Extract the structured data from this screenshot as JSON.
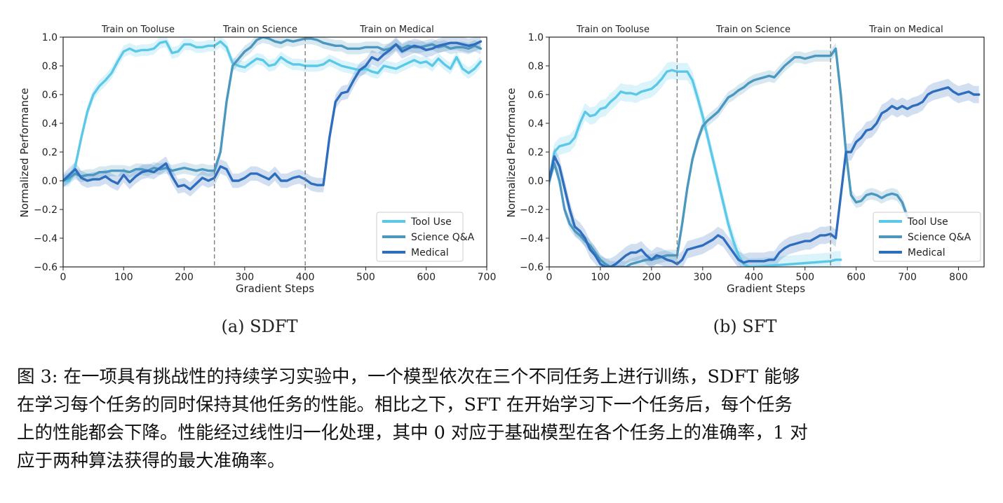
{
  "chart_data": [
    {
      "type": "line",
      "subcaption": "(a) SDFT",
      "xlabel": "Gradient Steps",
      "ylabel": "Normalized Performance",
      "xlim": [
        0,
        700
      ],
      "ylim": [
        -0.6,
        1.0
      ],
      "xticks": [
        0,
        100,
        200,
        300,
        400,
        500,
        600,
        700
      ],
      "yticks": [
        -0.6,
        -0.4,
        -0.2,
        0.0,
        0.2,
        0.4,
        0.6,
        0.8,
        1.0
      ],
      "ytick_labels": [
        "−0.6",
        "−0.4",
        "−0.2",
        "0.0",
        "0.2",
        "0.4",
        "0.6",
        "0.8",
        "1.0"
      ],
      "phase_boundaries": [
        250,
        400
      ],
      "phase_labels": [
        {
          "text": "Train on Tooluse",
          "x": 125
        },
        {
          "text": "Train on Science",
          "x": 325
        },
        {
          "text": "Train on Medical",
          "x": 550
        }
      ],
      "legend": [
        "Tool Use",
        "Science Q&A",
        "Medical"
      ],
      "legend_loc": "lower-right",
      "series": [
        {
          "name": "Tool Use",
          "color": "#5bc8e8",
          "band": 0.04,
          "x": [
            0,
            10,
            20,
            30,
            40,
            50,
            60,
            70,
            80,
            90,
            100,
            110,
            120,
            130,
            140,
            150,
            160,
            170,
            180,
            190,
            200,
            210,
            220,
            230,
            240,
            250,
            260,
            270,
            280,
            290,
            300,
            310,
            320,
            330,
            340,
            350,
            360,
            370,
            380,
            390,
            400,
            410,
            420,
            430,
            440,
            450,
            460,
            470,
            480,
            490,
            500,
            510,
            520,
            530,
            540,
            550,
            560,
            570,
            580,
            590,
            600,
            610,
            620,
            630,
            640,
            650,
            660,
            670,
            680,
            690
          ],
          "y": [
            0.0,
            0.0,
            0.1,
            0.3,
            0.48,
            0.6,
            0.66,
            0.7,
            0.75,
            0.83,
            0.9,
            0.92,
            0.9,
            0.91,
            0.91,
            0.92,
            0.96,
            0.97,
            0.89,
            0.9,
            0.95,
            0.95,
            0.93,
            0.93,
            0.94,
            0.94,
            0.97,
            0.93,
            0.82,
            0.8,
            0.79,
            0.82,
            0.85,
            0.84,
            0.8,
            0.81,
            0.86,
            0.83,
            0.81,
            0.81,
            0.8,
            0.8,
            0.8,
            0.81,
            0.84,
            0.82,
            0.8,
            0.79,
            0.78,
            0.77,
            0.78,
            0.76,
            0.75,
            0.8,
            0.79,
            0.78,
            0.8,
            0.82,
            0.84,
            0.82,
            0.83,
            0.8,
            0.85,
            0.81,
            0.78,
            0.86,
            0.78,
            0.75,
            0.78,
            0.83
          ]
        },
        {
          "name": "Science Q&A",
          "color": "#4b97c0",
          "band": 0.04,
          "x": [
            0,
            10,
            20,
            30,
            40,
            50,
            60,
            70,
            80,
            90,
            100,
            110,
            120,
            130,
            140,
            150,
            160,
            170,
            180,
            190,
            200,
            210,
            220,
            230,
            240,
            250,
            260,
            270,
            280,
            290,
            300,
            310,
            320,
            330,
            340,
            350,
            360,
            370,
            380,
            390,
            400,
            410,
            420,
            430,
            440,
            450,
            460,
            470,
            480,
            490,
            500,
            510,
            520,
            530,
            540,
            550,
            560,
            570,
            580,
            590,
            600,
            610,
            620,
            630,
            640,
            650,
            660,
            670,
            680,
            690
          ],
          "y": [
            0.0,
            0.02,
            0.05,
            0.03,
            0.04,
            0.04,
            0.06,
            0.06,
            0.07,
            0.07,
            0.07,
            0.06,
            0.08,
            0.08,
            0.07,
            0.09,
            0.08,
            0.09,
            0.07,
            0.08,
            0.09,
            0.08,
            0.07,
            0.08,
            0.07,
            0.07,
            0.2,
            0.55,
            0.8,
            0.85,
            0.9,
            0.93,
            0.98,
            1.0,
            0.99,
            0.97,
            0.96,
            0.98,
            0.97,
            0.98,
            0.99,
            0.99,
            0.98,
            0.96,
            0.95,
            0.94,
            0.94,
            0.92,
            0.92,
            0.92,
            0.93,
            0.93,
            0.93,
            0.91,
            0.92,
            0.95,
            0.92,
            0.94,
            0.93,
            0.93,
            0.94,
            0.95,
            0.93,
            0.94,
            0.92,
            0.93,
            0.93,
            0.92,
            0.94,
            0.92
          ]
        },
        {
          "name": "Medical",
          "color": "#2f6dbd",
          "band": 0.05,
          "x": [
            0,
            10,
            20,
            30,
            40,
            50,
            60,
            70,
            80,
            90,
            100,
            110,
            120,
            130,
            140,
            150,
            160,
            170,
            180,
            190,
            200,
            210,
            220,
            230,
            240,
            250,
            260,
            270,
            280,
            290,
            300,
            310,
            320,
            330,
            340,
            350,
            360,
            370,
            380,
            390,
            400,
            410,
            420,
            430,
            440,
            450,
            460,
            470,
            480,
            490,
            500,
            510,
            520,
            530,
            540,
            550,
            560,
            570,
            580,
            590,
            600,
            610,
            620,
            630,
            640,
            650,
            660,
            670,
            680,
            690
          ],
          "y": [
            0.0,
            0.04,
            0.08,
            0.02,
            0.0,
            0.01,
            0.01,
            0.03,
            0.0,
            -0.02,
            0.04,
            -0.01,
            0.03,
            0.06,
            0.07,
            0.06,
            0.09,
            0.12,
            0.03,
            -0.04,
            -0.03,
            -0.06,
            -0.02,
            0.02,
            0.0,
            0.02,
            0.1,
            0.08,
            0.0,
            0.0,
            0.02,
            0.05,
            0.05,
            0.03,
            0.01,
            0.05,
            0.0,
            0.0,
            0.02,
            0.03,
            0.01,
            -0.02,
            -0.03,
            -0.03,
            0.3,
            0.55,
            0.61,
            0.62,
            0.7,
            0.77,
            0.8,
            0.86,
            0.84,
            0.88,
            0.91,
            0.95,
            0.9,
            0.92,
            0.94,
            0.93,
            0.91,
            0.92,
            0.94,
            0.95,
            0.96,
            0.96,
            0.95,
            0.94,
            0.95,
            0.97
          ]
        }
      ]
    },
    {
      "type": "line",
      "subcaption": "(b) SFT",
      "xlabel": "Gradient Steps",
      "ylabel": "Normalized Performance",
      "xlim": [
        0,
        850
      ],
      "ylim": [
        -0.6,
        1.0
      ],
      "xticks": [
        0,
        100,
        200,
        300,
        400,
        500,
        600,
        700,
        800
      ],
      "yticks": [
        -0.6,
        -0.4,
        -0.2,
        0.0,
        0.2,
        0.4,
        0.6,
        0.8,
        1.0
      ],
      "ytick_labels": [
        "−0.6",
        "−0.4",
        "−0.2",
        "0.0",
        "0.2",
        "0.4",
        "0.6",
        "0.8",
        "1.0"
      ],
      "phase_boundaries": [
        250,
        550
      ],
      "phase_labels": [
        {
          "text": "Train on Tooluse",
          "x": 125
        },
        {
          "text": "Train on Science",
          "x": 400
        },
        {
          "text": "Train on Medical",
          "x": 700
        }
      ],
      "legend": [
        "Tool Use",
        "Science Q&A",
        "Medical"
      ],
      "legend_loc": "lower-right",
      "series": [
        {
          "name": "Tool Use",
          "color": "#5bc8e8",
          "band": 0.06,
          "x": [
            0,
            10,
            20,
            30,
            40,
            50,
            60,
            70,
            80,
            90,
            100,
            110,
            120,
            130,
            140,
            150,
            160,
            170,
            180,
            190,
            200,
            210,
            220,
            230,
            240,
            250,
            260,
            270,
            280,
            290,
            300,
            310,
            320,
            330,
            340,
            350,
            360,
            370,
            380,
            390,
            400,
            550,
            560,
            570
          ],
          "y": [
            0.0,
            0.2,
            0.24,
            0.25,
            0.26,
            0.3,
            0.4,
            0.48,
            0.45,
            0.46,
            0.5,
            0.51,
            0.55,
            0.58,
            0.62,
            0.61,
            0.61,
            0.6,
            0.62,
            0.63,
            0.64,
            0.67,
            0.71,
            0.76,
            0.77,
            0.76,
            0.76,
            0.76,
            0.7,
            0.58,
            0.45,
            0.3,
            0.15,
            0.0,
            -0.15,
            -0.3,
            -0.42,
            -0.52,
            -0.58,
            -0.6,
            -0.6,
            -0.56,
            -0.55,
            -0.55
          ]
        },
        {
          "name": "Science Q&A",
          "color": "#4b97c0",
          "band": 0.04,
          "x": [
            0,
            10,
            20,
            30,
            40,
            50,
            60,
            70,
            80,
            90,
            100,
            110,
            120,
            130,
            140,
            150,
            160,
            170,
            180,
            190,
            200,
            210,
            220,
            230,
            240,
            250,
            260,
            270,
            280,
            290,
            300,
            310,
            320,
            330,
            340,
            350,
            360,
            370,
            380,
            390,
            400,
            410,
            420,
            430,
            440,
            450,
            460,
            470,
            480,
            490,
            500,
            510,
            520,
            530,
            540,
            550,
            560,
            570,
            580,
            590,
            600,
            610,
            620,
            630,
            640,
            650,
            660,
            670,
            680,
            690,
            700
          ],
          "y": [
            0.0,
            0.12,
            0.0,
            -0.2,
            -0.3,
            -0.35,
            -0.38,
            -0.42,
            -0.45,
            -0.5,
            -0.55,
            -0.58,
            -0.6,
            -0.6,
            -0.6,
            -0.6,
            -0.58,
            -0.57,
            -0.56,
            -0.55,
            -0.55,
            -0.54,
            -0.53,
            -0.52,
            -0.52,
            -0.52,
            -0.3,
            -0.05,
            0.15,
            0.28,
            0.38,
            0.42,
            0.45,
            0.48,
            0.53,
            0.58,
            0.6,
            0.63,
            0.65,
            0.68,
            0.7,
            0.71,
            0.72,
            0.73,
            0.72,
            0.76,
            0.8,
            0.83,
            0.86,
            0.86,
            0.85,
            0.86,
            0.87,
            0.87,
            0.87,
            0.87,
            0.92,
            0.6,
            0.2,
            -0.1,
            -0.15,
            -0.14,
            -0.1,
            -0.09,
            -0.1,
            -0.12,
            -0.1,
            -0.09,
            -0.1,
            -0.15,
            -0.25
          ]
        },
        {
          "name": "Medical",
          "color": "#2f6dbd",
          "band": 0.06,
          "x": [
            0,
            10,
            20,
            30,
            40,
            50,
            60,
            70,
            80,
            90,
            100,
            110,
            120,
            130,
            140,
            150,
            160,
            170,
            180,
            190,
            200,
            210,
            220,
            230,
            240,
            250,
            260,
            270,
            280,
            290,
            300,
            310,
            320,
            330,
            340,
            350,
            360,
            370,
            380,
            390,
            400,
            410,
            420,
            430,
            440,
            450,
            460,
            470,
            480,
            490,
            500,
            510,
            520,
            530,
            540,
            550,
            560,
            570,
            580,
            590,
            600,
            610,
            620,
            630,
            640,
            650,
            660,
            670,
            680,
            690,
            700,
            710,
            720,
            730,
            740,
            750,
            760,
            770,
            780,
            790,
            800,
            810,
            820,
            830,
            840
          ],
          "y": [
            0.0,
            0.17,
            0.1,
            -0.05,
            -0.2,
            -0.32,
            -0.35,
            -0.4,
            -0.48,
            -0.52,
            -0.58,
            -0.6,
            -0.6,
            -0.58,
            -0.55,
            -0.52,
            -0.5,
            -0.5,
            -0.48,
            -0.52,
            -0.55,
            -0.52,
            -0.53,
            -0.55,
            -0.56,
            -0.58,
            -0.55,
            -0.48,
            -0.47,
            -0.46,
            -0.45,
            -0.43,
            -0.41,
            -0.38,
            -0.4,
            -0.45,
            -0.5,
            -0.55,
            -0.57,
            -0.56,
            -0.56,
            -0.56,
            -0.56,
            -0.55,
            -0.55,
            -0.5,
            -0.47,
            -0.45,
            -0.44,
            -0.43,
            -0.42,
            -0.42,
            -0.4,
            -0.38,
            -0.38,
            -0.37,
            -0.4,
            -0.1,
            0.2,
            0.2,
            0.27,
            0.3,
            0.35,
            0.36,
            0.4,
            0.47,
            0.49,
            0.52,
            0.5,
            0.52,
            0.5,
            0.52,
            0.53,
            0.55,
            0.6,
            0.62,
            0.63,
            0.64,
            0.65,
            0.62,
            0.6,
            0.61,
            0.62,
            0.6,
            0.6
          ]
        }
      ]
    }
  ],
  "caption": {
    "lines": [
      "图 3: 在一项具有挑战性的持续学习实验中，一个模型依次在三个不同任务上进行训练，SDFT 能够",
      "在学习每个任务的同时保持其他任务的性能。相比之下，SFT 在开始学习下一个任务后，每个任务",
      "上的性能都会下降。性能经过线性归一化处理，其中 0 对应于基础模型在各个任务上的准确率，1 对",
      "应于两种算法获得的最大准确率。"
    ]
  }
}
